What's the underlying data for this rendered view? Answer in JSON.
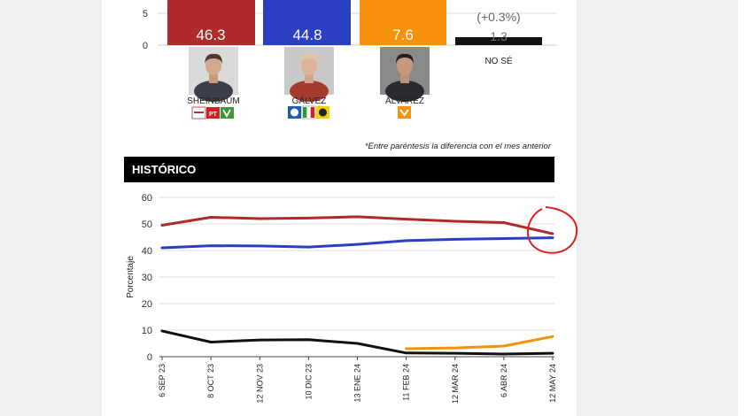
{
  "colors": {
    "sheinbaum": "#b02a2a",
    "galvez": "#2b3fc2",
    "alvarez": "#f7900a",
    "no_se": "#111111",
    "header_bg": "#000000",
    "annotation": "#e02020"
  },
  "top_chart": {
    "y_ticks": [
      "5",
      "0"
    ],
    "bars": [
      {
        "value_label": "46.3",
        "name": "SHEINBAUM",
        "color": "#b02a2a",
        "parties": [
          "MORENA",
          "PT",
          "PVEM"
        ]
      },
      {
        "value_label": "44.8",
        "name": "GÁLVEZ",
        "color": "#2b3fc2",
        "parties": [
          "PAN",
          "PRI",
          "PRD"
        ]
      },
      {
        "value_label": "7.6",
        "name": "ÁLVAREZ",
        "color": "#f7900a",
        "parties": [
          "MC"
        ]
      },
      {
        "value_label": "1.3",
        "change": "(+0.3%)",
        "name": "NO SÉ",
        "color": "#111111",
        "parties": []
      }
    ]
  },
  "footnote": "*Entre paréntesis la diferencia con el mes anterior",
  "historico_title": "HISTÓRICO",
  "chart_data": {
    "type": "line",
    "x": [
      "6 SEP 23",
      "8 OCT 23",
      "12 NOV 23",
      "10 DIC 23",
      "13 ENE 24",
      "11 FEB 24",
      "12 MAR 24",
      "6 ABR 24",
      "12 MAY 24"
    ],
    "ylabel": "Porcentaje",
    "ylim": [
      0,
      60
    ],
    "yticks": [
      0,
      10,
      20,
      30,
      40,
      50,
      60
    ],
    "grid": true,
    "series": [
      {
        "key": "sheinbaum",
        "color": "#b02a2a",
        "values": [
          49.5,
          52.5,
          52,
          52.2,
          52.7,
          51.8,
          51,
          50.5,
          46.3
        ]
      },
      {
        "key": "galvez",
        "color": "#2b3fc2",
        "values": [
          41,
          41.8,
          41.7,
          41.3,
          42.3,
          43.7,
          44.2,
          44.5,
          44.8
        ]
      },
      {
        "key": "alvarez",
        "color": "#f7900a",
        "values": [
          null,
          null,
          null,
          null,
          null,
          3,
          3.3,
          4,
          7.6
        ]
      },
      {
        "key": "no_se",
        "color": "#111111",
        "values": [
          9.7,
          5.5,
          6.3,
          6.4,
          5,
          1.4,
          1.3,
          1,
          1.3
        ]
      }
    ]
  }
}
